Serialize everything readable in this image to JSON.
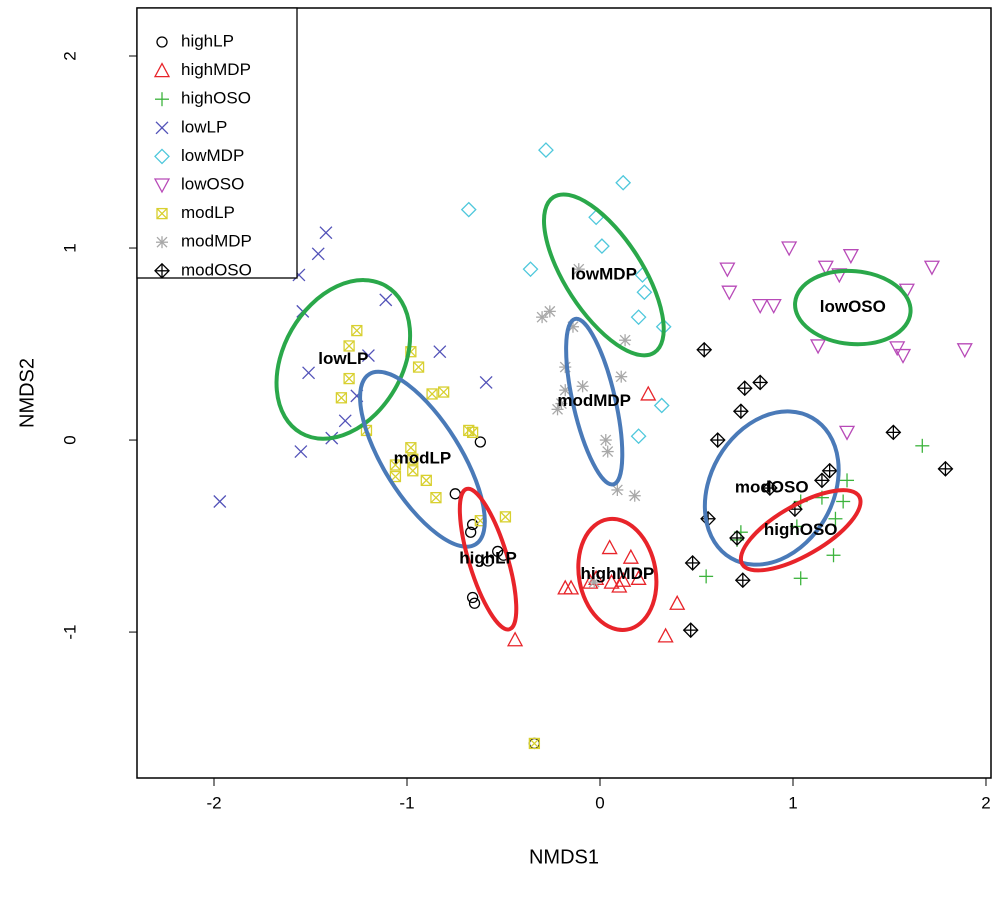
{
  "chart_data": {
    "type": "scatter",
    "x_label": "NMDS1",
    "y_label": "NMDS2",
    "xlim": [
      -2.399,
      2.026
    ],
    "ylim": [
      -1.76,
      2.25
    ],
    "xticks": [
      -2,
      -1,
      0,
      1,
      2
    ],
    "yticks": [
      -1,
      0,
      1,
      2
    ],
    "legend": "top-left",
    "series": [
      {
        "name": "highLP",
        "color": "#000000",
        "marker": "circle",
        "x": [
          -0.62,
          -0.75,
          -0.66,
          -0.67,
          -0.53,
          -0.5,
          -0.58,
          -0.66,
          -0.65,
          -0.34
        ],
        "y": [
          -0.01,
          -0.28,
          -0.44,
          -0.48,
          -0.58,
          -0.6,
          -0.63,
          -0.82,
          -0.85,
          -1.58
        ]
      },
      {
        "name": "highMDP",
        "color": "#e8242a",
        "marker": "triangle",
        "x": [
          0.25,
          0.05,
          0.16,
          -0.02,
          0.12,
          0.2,
          0.06,
          -0.15,
          -0.18,
          0.1,
          0.4,
          0.34,
          -0.44,
          -0.05
        ],
        "y": [
          0.24,
          -0.56,
          -0.61,
          -0.72,
          -0.73,
          -0.72,
          -0.74,
          -0.77,
          -0.77,
          -0.76,
          -0.85,
          -1.02,
          -1.04,
          -0.74
        ]
      },
      {
        "name": "highOSO",
        "color": "#3cb33c",
        "marker": "plus",
        "x": [
          1.67,
          1.28,
          1.15,
          1.26,
          1.04,
          1.22,
          1.02,
          0.73,
          0.71,
          1.21,
          0.55,
          1.04
        ],
        "y": [
          -0.03,
          -0.21,
          -0.3,
          -0.32,
          -0.32,
          -0.41,
          -0.45,
          -0.48,
          -0.52,
          -0.6,
          -0.71,
          -0.72
        ]
      },
      {
        "name": "lowLP",
        "color": "#5252b8",
        "marker": "cross",
        "x": [
          -1.42,
          -1.46,
          -1.56,
          -1.54,
          -1.11,
          -1.2,
          -0.83,
          -0.59,
          -1.51,
          -1.26,
          -1.32,
          -1.39,
          -1.55,
          -1.97
        ],
        "y": [
          1.08,
          0.97,
          0.86,
          0.67,
          0.73,
          0.44,
          0.46,
          0.3,
          0.35,
          0.23,
          0.1,
          0.01,
          -0.06,
          -0.32
        ]
      },
      {
        "name": "lowMDP",
        "color": "#4fc8dc",
        "marker": "diamond",
        "x": [
          -0.28,
          0.12,
          -0.68,
          -0.02,
          0.01,
          -0.36,
          0.22,
          0.23,
          0.2,
          0.33,
          0.32,
          0.2
        ],
        "y": [
          1.51,
          1.34,
          1.2,
          1.16,
          1.01,
          0.89,
          0.86,
          0.77,
          0.64,
          0.59,
          0.18,
          0.02
        ]
      },
      {
        "name": "lowOSO",
        "color": "#b84ab8",
        "marker": "down-triangle",
        "x": [
          0.98,
          1.3,
          0.66,
          1.17,
          1.24,
          1.72,
          0.67,
          1.59,
          0.83,
          0.9,
          1.13,
          1.54,
          1.57,
          1.89,
          1.28
        ],
        "y": [
          1.0,
          0.96,
          0.89,
          0.9,
          0.86,
          0.9,
          0.77,
          0.78,
          0.7,
          0.7,
          0.49,
          0.48,
          0.44,
          0.47,
          0.04
        ]
      },
      {
        "name": "modLP",
        "color": "#d8d030",
        "marker": "boxed-cross",
        "x": [
          -1.26,
          -1.3,
          -0.98,
          -1.3,
          -1.34,
          -0.81,
          -0.87,
          -0.94,
          -1.21,
          -0.68,
          -0.66,
          -0.98,
          -0.97,
          -1.06,
          -0.97,
          -1.06,
          -0.9,
          -0.85,
          -0.49,
          -0.62,
          -0.34
        ],
        "y": [
          0.57,
          0.49,
          0.46,
          0.32,
          0.22,
          0.25,
          0.24,
          0.38,
          0.05,
          0.05,
          0.04,
          -0.04,
          -0.1,
          -0.13,
          -0.16,
          -0.19,
          -0.21,
          -0.3,
          -0.4,
          -0.42,
          -1.58
        ]
      },
      {
        "name": "modMDP",
        "color": "#a8a8a8",
        "marker": "asterisk",
        "x": [
          -0.11,
          -0.26,
          -0.3,
          -0.14,
          0.13,
          -0.18,
          0.11,
          -0.09,
          -0.18,
          -0.2,
          -0.22,
          0.03,
          0.04,
          0.09,
          0.18,
          -0.03
        ],
        "y": [
          0.89,
          0.67,
          0.64,
          0.59,
          0.52,
          0.38,
          0.33,
          0.28,
          0.26,
          0.19,
          0.16,
          0.0,
          -0.06,
          -0.26,
          -0.29,
          -0.74
        ]
      },
      {
        "name": "modOSO",
        "color": "#000000",
        "marker": "boxed-diamond",
        "x": [
          0.54,
          0.75,
          0.83,
          0.73,
          0.61,
          1.52,
          1.79,
          1.19,
          0.88,
          1.15,
          1.01,
          0.56,
          0.71,
          0.48,
          0.74,
          0.47
        ],
        "y": [
          0.47,
          0.27,
          0.3,
          0.15,
          0.0,
          0.04,
          -0.15,
          -0.16,
          -0.25,
          -0.21,
          -0.36,
          -0.41,
          -0.51,
          -0.64,
          -0.73,
          -0.99
        ]
      }
    ],
    "ellipses": [
      {
        "label": "lowOSO",
        "color": "#2aa84a",
        "center": [
          1.31,
          0.69
        ],
        "radii": [
          0.3,
          0.19
        ],
        "angle": -5
      },
      {
        "label": "lowMDP",
        "color": "#2aa84a",
        "center": [
          0.02,
          0.86
        ],
        "radii": [
          0.48,
          0.2
        ],
        "angle": -57
      },
      {
        "label": "lowLP",
        "color": "#2aa84a",
        "center": [
          -1.33,
          0.42
        ],
        "radii": [
          0.44,
          0.31
        ],
        "angle": 60
      },
      {
        "label": "modMDP",
        "color": "#4a7ab8",
        "center": [
          -0.03,
          0.2
        ],
        "radii": [
          0.44,
          0.11
        ],
        "angle": -77
      },
      {
        "label": "modLP",
        "color": "#4a7ab8",
        "center": [
          -0.92,
          -0.1
        ],
        "radii": [
          0.52,
          0.2
        ],
        "angle": -58
      },
      {
        "label": "modOSO",
        "color": "#4a7ab8",
        "center": [
          0.89,
          -0.25
        ],
        "radii": [
          0.42,
          0.32
        ],
        "angle": 60
      },
      {
        "label": "highLP",
        "color": "#e8242a",
        "center": [
          -0.58,
          -0.62
        ],
        "radii": [
          0.38,
          0.1
        ],
        "angle": -73
      },
      {
        "label": "highMDP",
        "color": "#e8242a",
        "center": [
          0.09,
          -0.7
        ],
        "radii": [
          0.29,
          0.2
        ],
        "angle": -80
      },
      {
        "label": "highOSO",
        "color": "#e8242a",
        "center": [
          1.04,
          -0.47
        ],
        "radii": [
          0.35,
          0.13
        ],
        "angle": 30
      }
    ]
  }
}
